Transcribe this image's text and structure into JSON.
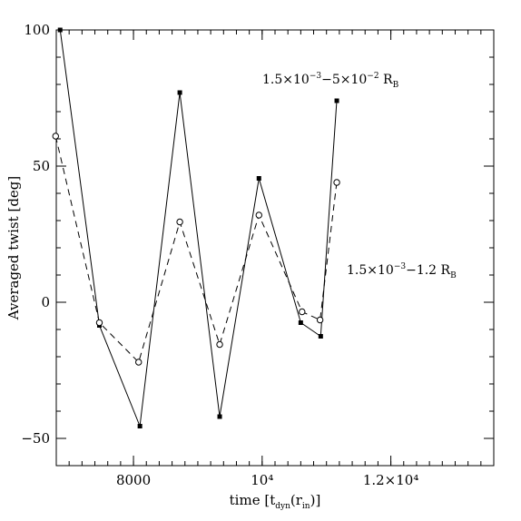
{
  "chart_data": {
    "type": "line",
    "xlabel": {
      "main": "time [t",
      "sub1": "dyn",
      "mid": "(r",
      "sub2": "in",
      "end": ")]"
    },
    "ylabel": "Averaged twist [deg]",
    "xlim": [
      6800,
      13600
    ],
    "ylim": [
      -60,
      100
    ],
    "x_ticks": [
      {
        "value": 8000,
        "label": "8000"
      },
      {
        "value": 10000,
        "label": "10⁴"
      },
      {
        "value": 12000,
        "label": "1.2×10⁴"
      }
    ],
    "y_ticks": [
      {
        "value": 100,
        "label": "100"
      },
      {
        "value": 50,
        "label": "50"
      },
      {
        "value": 0,
        "label": "0"
      },
      {
        "value": -50,
        "label": "−50"
      }
    ],
    "x_minor_step": 200,
    "y_minor_step": 10,
    "series": [
      {
        "marker": "filled-square",
        "line": "solid",
        "color": "#000000",
        "x": [
          6860,
          7470,
          8100,
          8720,
          9340,
          9950,
          10600,
          10910,
          11160
        ],
        "y": [
          100,
          -8.5,
          -45.5,
          77,
          -42,
          45.5,
          -7.5,
          -12.5,
          74
        ]
      },
      {
        "marker": "open-circle",
        "line": "dashed",
        "color": "#000000",
        "x": [
          6790,
          7470,
          8080,
          8720,
          9340,
          9950,
          10620,
          10900,
          11160
        ],
        "y": [
          61,
          -7.5,
          -22,
          29.5,
          -15.5,
          32,
          -3.5,
          -6.5,
          44
        ]
      }
    ],
    "annotations": [
      {
        "id": "a1",
        "parts": [
          {
            "t": "1.5×10",
            "k": "n"
          },
          {
            "t": "−3",
            "k": "sup"
          },
          {
            "t": "−5×10",
            "k": "n"
          },
          {
            "t": "−2",
            "k": "sup"
          },
          {
            "t": " R",
            "k": "n"
          },
          {
            "t": "B",
            "k": "sub"
          }
        ]
      },
      {
        "id": "a2",
        "parts": [
          {
            "t": "1.5×10",
            "k": "n"
          },
          {
            "t": "−3",
            "k": "sup"
          },
          {
            "t": "−1.2 R",
            "k": "n"
          },
          {
            "t": "B",
            "k": "sub"
          }
        ]
      }
    ]
  }
}
